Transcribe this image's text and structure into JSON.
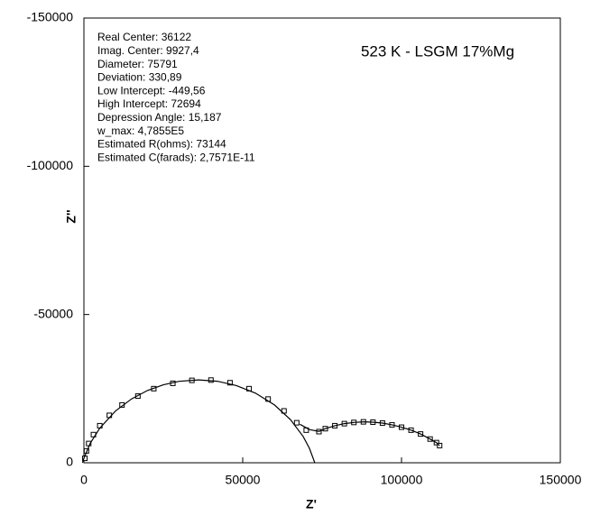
{
  "chart_data": {
    "type": "scatter",
    "title": "523 K - LSGM 17%Mg",
    "x_label": "Z'",
    "y_label": "Z''",
    "annotations": [
      "Real Center: 36122",
      "Imag. Center: 9927,4",
      "Diameter: 75791",
      "Deviation: 330,89",
      "Low Intercept: -449,56",
      "High Intercept: 72694",
      "Depression Angle: 15,187",
      "w_max: 4,7855E5",
      "Estimated R(ohms): 73144",
      "Estimated C(farads): 2,7571E-11"
    ],
    "xlim": [
      0,
      150000
    ],
    "ylim": [
      0,
      -150000
    ],
    "xticks": [
      0,
      50000,
      100000,
      150000
    ],
    "yticks": [
      0,
      -50000,
      -100000,
      -150000
    ],
    "series": [
      {
        "color": "#000000",
        "marker": "square",
        "x": [
          300,
          800,
          1500,
          3000,
          5000,
          8000,
          12000,
          17000,
          22000,
          28000,
          34000,
          40000,
          46000,
          52000,
          58000,
          63000,
          67000,
          70000,
          74000,
          76000,
          79000,
          82000,
          85000,
          88000,
          91000,
          94000,
          97000,
          100000,
          103000,
          106000,
          109000,
          111000,
          112000
        ],
        "values": [
          -1500,
          -4000,
          -6500,
          -9500,
          -12500,
          -16000,
          -19500,
          -22500,
          -25000,
          -26800,
          -27800,
          -27900,
          -27000,
          -25000,
          -21500,
          -17500,
          -13500,
          -11000,
          -10500,
          -11500,
          -12500,
          -13200,
          -13600,
          -13800,
          -13700,
          -13400,
          -12800,
          -12000,
          -11000,
          -9700,
          -8000,
          -6800,
          -5800
        ]
      },
      {
        "color": "#000000",
        "marker": "none",
        "x": [
          -449,
          0,
          2000,
          5000,
          10000,
          15000,
          20000,
          25000,
          30000,
          36122,
          42000,
          48000,
          54000,
          60000,
          65000,
          69000,
          71000,
          72694
        ],
        "values": [
          0,
          -1530,
          -6558,
          -11694,
          -17527,
          -21536,
          -24368,
          -26300,
          -27471,
          -27968,
          -27510,
          -26059,
          -23486,
          -19499,
          -14611,
          -8917,
          -4892,
          0
        ]
      },
      {
        "color": "#000000",
        "marker": "none",
        "x": [
          68000,
          71000,
          74000,
          76000,
          79000,
          82000,
          85000,
          88000,
          91000,
          94000,
          97000,
          100000,
          103000,
          106000,
          109000,
          111000,
          112000
        ],
        "values": [
          -13000,
          -11200,
          -10600,
          -11500,
          -12500,
          -13200,
          -13600,
          -13800,
          -13700,
          -13400,
          -12800,
          -12000,
          -11000,
          -9700,
          -8000,
          -6800,
          -5800
        ]
      }
    ]
  }
}
